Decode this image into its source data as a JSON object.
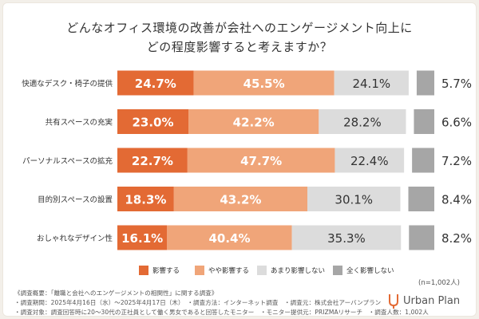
{
  "title_lines": [
    "どんなオフィス環境の改善が会社へのエンゲージメント向上に",
    "どの程度影響すると考えますか？"
  ],
  "chart_data": {
    "type": "bar",
    "orientation": "horizontal-stacked-100",
    "categories": [
      "快適なデスク・椅子の提供",
      "共有スペースの充実",
      "パーソナルスペースの拡充",
      "目的別スペースの設置",
      "おしゃれなデザイン性"
    ],
    "series": [
      {
        "name": "影響する",
        "color": "#e36a34",
        "values": [
          24.7,
          23.0,
          22.7,
          18.3,
          16.1
        ]
      },
      {
        "name": "やや影響する",
        "color": "#f0a579",
        "values": [
          45.5,
          42.2,
          47.7,
          43.2,
          40.4
        ]
      },
      {
        "name": "あまり影響しない",
        "color": "#dcdcdc",
        "values": [
          24.1,
          28.2,
          22.4,
          30.1,
          35.3
        ]
      },
      {
        "name": "全く影響しない",
        "color": "#a6a6a6",
        "values": [
          5.7,
          6.6,
          7.2,
          8.4,
          8.2
        ]
      }
    ],
    "value_suffix": "%",
    "legend_position": "bottom",
    "xlim": [
      0,
      100
    ]
  },
  "sample_note": "(n=1,002人)",
  "notes": [
    "《調査概要：「離職と会社へのエンゲージメントの相関性」に関する調査》",
    "・調査期間：2025年4月16日（水）〜2025年4月17日（木）　・調査方法：インターネット調査　・調査元：株式会社アーバンプラン",
    "・調査対象：調査回答時に20〜30代の正社員として働く男女であると回答したモニター　・モニター提供元：PRIZMAリサーチ　・調査人数：1,002人"
  ],
  "logo": {
    "text": "Urban Plan",
    "icon": "urban-plan-logo-icon",
    "color": "#e36a34"
  }
}
